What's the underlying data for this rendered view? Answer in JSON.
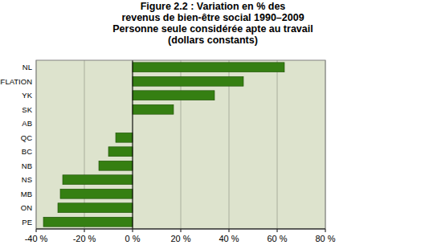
{
  "chart_data": {
    "type": "bar",
    "orientation": "horizontal",
    "title": [
      "Figure 2.2 : Variation en % des",
      "revenus de bien-être social 1990–2009"
    ],
    "subtitle": [
      "Personne seule considérée apte au travail",
      "(dollars constants)"
    ],
    "categories": [
      "NL",
      "INFLATION",
      "YK",
      "SK",
      "AB",
      "QC",
      "BC",
      "NB",
      "NS",
      "MB",
      "ON",
      "PE"
    ],
    "values": [
      63,
      46,
      34,
      17,
      0,
      -7,
      -10,
      -14,
      -29,
      -30,
      -31,
      -37
    ],
    "color": "#357f12",
    "xlim": [
      -40,
      80
    ],
    "xticks": [
      {
        "value": -40,
        "label": "-40 %"
      },
      {
        "value": -20,
        "label": "-20 %"
      },
      {
        "value": 0,
        "label": "0 %"
      },
      {
        "value": 20,
        "label": "20 %"
      },
      {
        "value": 40,
        "label": "40 %"
      },
      {
        "value": 60,
        "label": "60 %"
      },
      {
        "value": 80,
        "label": "80 %"
      }
    ],
    "grid": true
  }
}
